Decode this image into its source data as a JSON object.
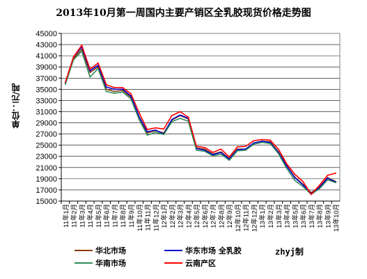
{
  "chart_data": {
    "type": "line",
    "title": "2013年10月第一周国内主要产销区全乳胶现货价格走势图",
    "ylabel": "单位：元/吨",
    "xlabel": "",
    "ylim": [
      15000,
      45000
    ],
    "yticks": [
      45000,
      43000,
      41000,
      39000,
      37000,
      35000,
      33000,
      31000,
      29000,
      27000,
      25000,
      23000,
      21000,
      19000,
      17000,
      15000
    ],
    "grid": true,
    "legend_placement": "bottom",
    "categories": [
      "11年1月",
      "11年2月",
      "11年3月",
      "11年4月",
      "11年5月",
      "11年6月",
      "11年7月",
      "11年8月",
      "11年9月",
      "11年10月",
      "11年11月",
      "11年12月",
      "12年1月",
      "12年2月",
      "12年3月",
      "12年4月",
      "12年5月",
      "12年6月",
      "12年7月",
      "12年8月",
      "12年9月",
      "12年10月",
      "12年11月",
      "12年12月",
      "13年1月",
      "13年2月",
      "13年3月",
      "13年4月",
      "13年5月",
      "13年6月",
      "13年7月",
      "13年8月",
      "13年9月",
      "13年10月"
    ],
    "series": [
      {
        "name": "华北市场",
        "color": "#8B3A0F",
        "values": [
          36000,
          40500,
          42200,
          38000,
          39000,
          35000,
          34600,
          34800,
          33600,
          30000,
          27200,
          27600,
          27200,
          29500,
          30300,
          29700,
          24500,
          24300,
          23400,
          23800,
          22600,
          24300,
          24300,
          25400,
          25700,
          25600,
          23800,
          21400,
          19300,
          18000,
          16500,
          17500,
          19200,
          18500
        ]
      },
      {
        "name": "华东市场 全乳胶",
        "color": "#0000CC",
        "values": [
          36200,
          40800,
          42600,
          38300,
          39300,
          35400,
          35000,
          35000,
          33800,
          30100,
          27400,
          27700,
          27000,
          29600,
          30400,
          29800,
          24400,
          24100,
          23300,
          23700,
          22500,
          24200,
          24300,
          25400,
          25700,
          25500,
          23700,
          21300,
          19200,
          17900,
          16400,
          17400,
          19100,
          18400
        ]
      },
      {
        "name": "华南市场",
        "color": "#2E8B57",
        "values": [
          35900,
          40300,
          41800,
          37200,
          38700,
          34600,
          34300,
          34500,
          33300,
          29600,
          26800,
          27300,
          26900,
          29200,
          29800,
          29300,
          24100,
          23900,
          23100,
          23400,
          22300,
          24000,
          24100,
          25200,
          25500,
          25300,
          23500,
          20900,
          18700,
          17600,
          16200,
          17200,
          18800,
          18300
        ]
      },
      {
        "name": "云南产区",
        "color": "#FF0000",
        "values": [
          36300,
          40800,
          42900,
          38600,
          39700,
          35800,
          35300,
          35300,
          34200,
          30800,
          27800,
          28100,
          27900,
          30300,
          31000,
          30000,
          24800,
          24600,
          23700,
          24300,
          22900,
          24700,
          24800,
          25800,
          26000,
          25900,
          24300,
          21700,
          19800,
          18500,
          16200,
          17800,
          19600,
          20000
        ]
      }
    ]
  },
  "credit": "zhyj制"
}
